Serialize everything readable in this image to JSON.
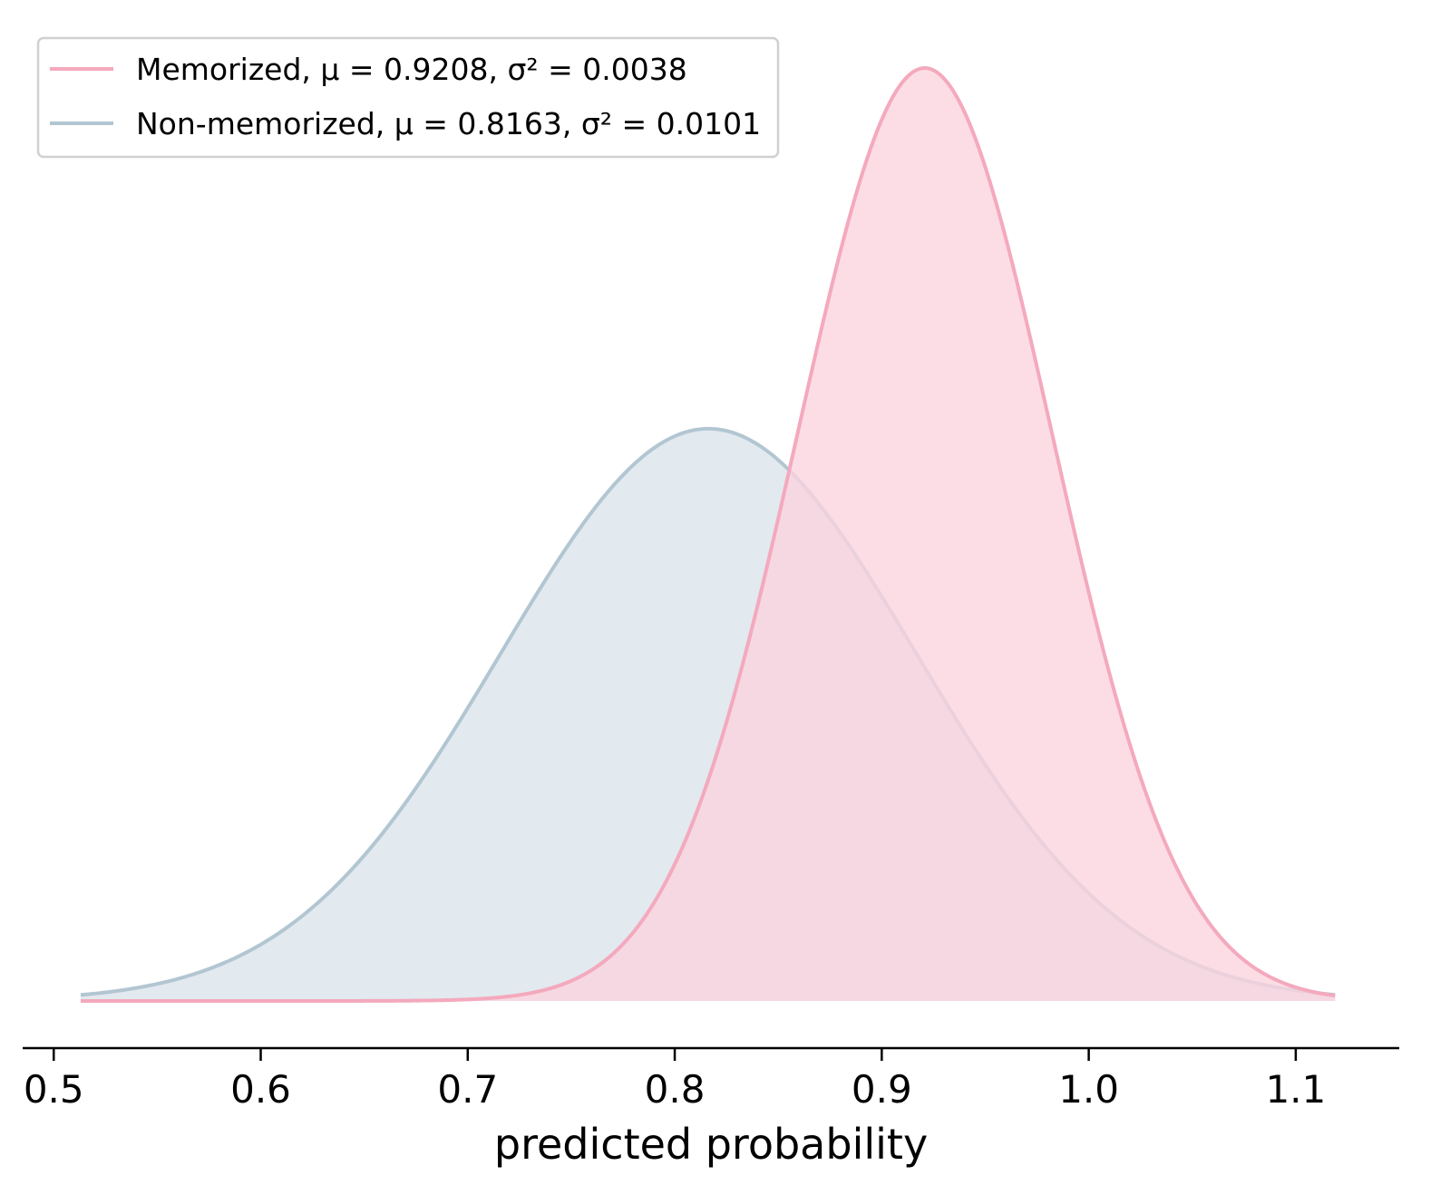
{
  "chart_data": {
    "type": "area",
    "xlabel": "predicted probability",
    "ylabel": "",
    "xlim": [
      0.485,
      1.15
    ],
    "x_range": [
      0.513,
      1.119
    ],
    "xticks": [
      "0.5",
      "0.6",
      "0.7",
      "0.8",
      "0.9",
      "1.0",
      "1.1"
    ],
    "yaxis_visible": false,
    "grid": false,
    "legend_position": "top-left",
    "series": [
      {
        "name": "Memorized",
        "legend_label": "Memorized, μ = 0.9208, σ² = 0.0038",
        "mu": 0.9208,
        "variance": 0.0038,
        "line_color": "#f4a9bd",
        "fill_color": "#fbd3df"
      },
      {
        "name": "Non-memorized",
        "legend_label": "Non-memorized, μ = 0.8163, σ² = 0.0101",
        "mu": 0.8163,
        "variance": 0.0101,
        "line_color": "#b2c6d2",
        "fill_color": "#dae3ea"
      }
    ]
  }
}
